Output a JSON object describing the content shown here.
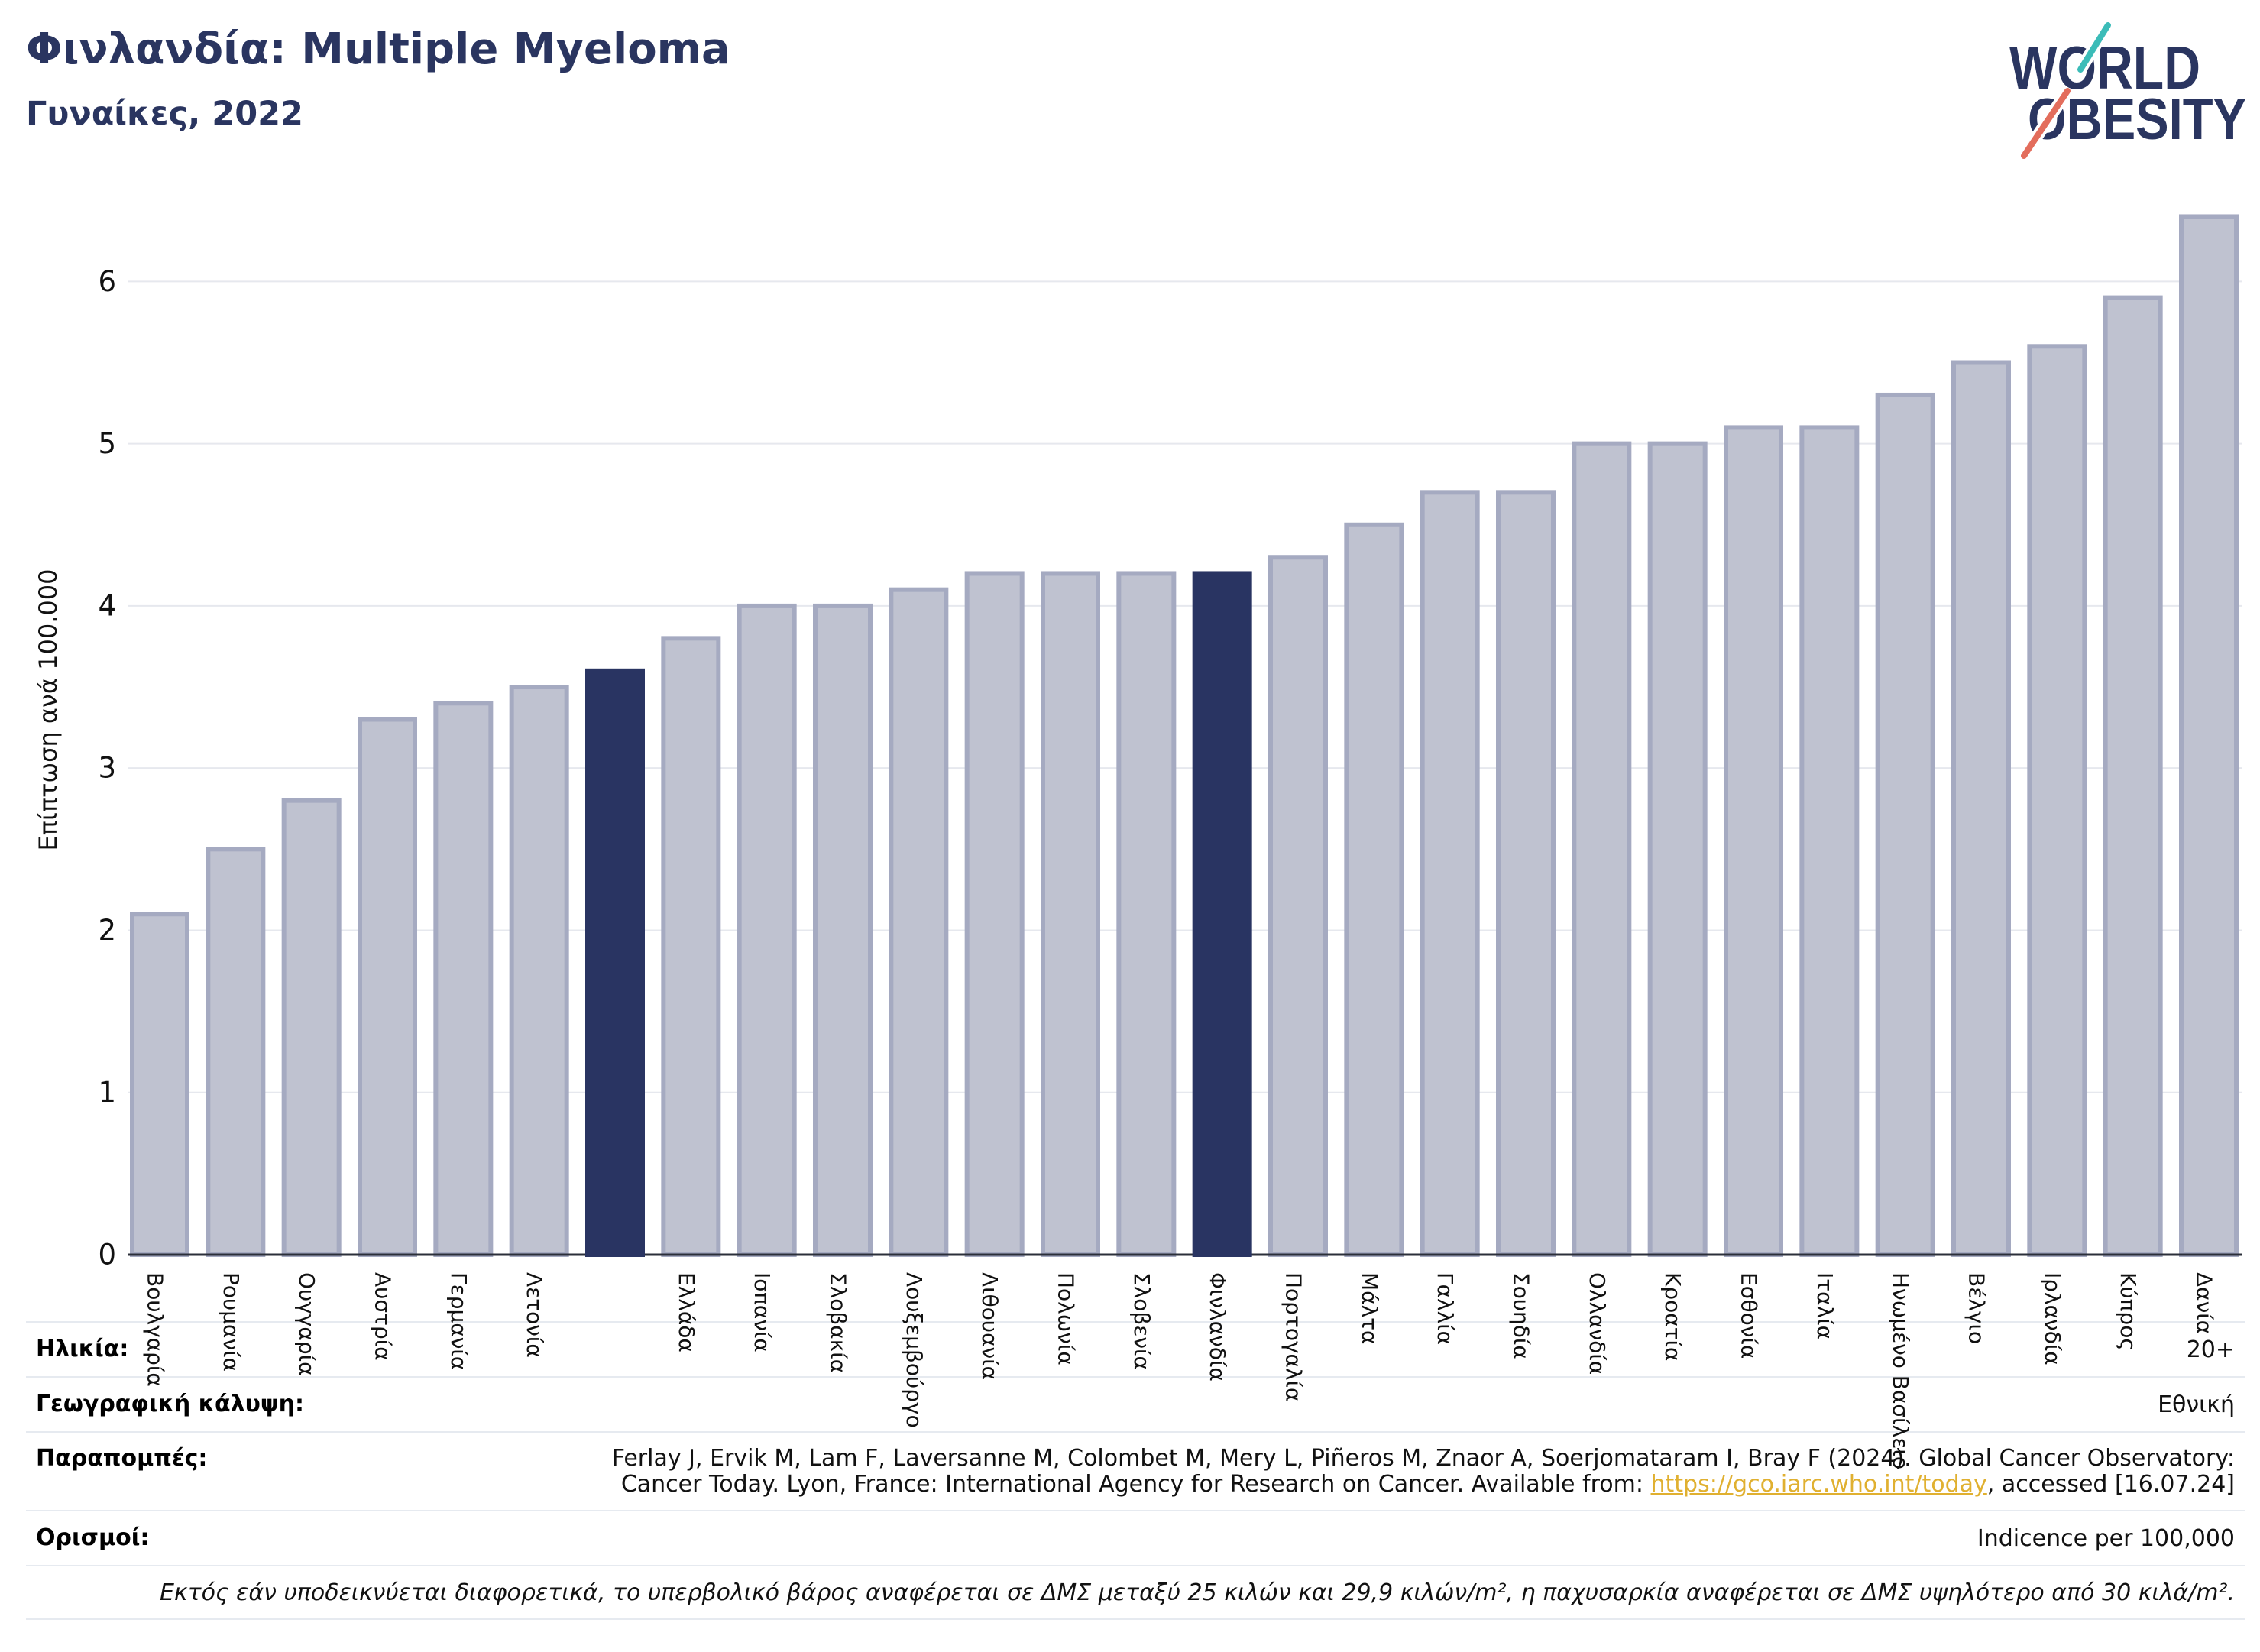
{
  "header": {
    "title": "Φινλανδία: Multiple Myeloma",
    "subtitle": "Γυναίκες, 2022"
  },
  "logo": {
    "line1": "WORLD",
    "line2": "OBESITY",
    "colors": {
      "text": "#2a3560",
      "slash_top": "#3bbcb8",
      "slash_bottom": "#e36d5c"
    }
  },
  "chart_data": {
    "type": "bar",
    "title": "Φινλανδία: Multiple Myeloma",
    "subtitle": "Γυναίκες, 2022",
    "xlabel": "",
    "ylabel": "Επίπτωση ανά 100.000",
    "categories": [
      "Βουλγαρία",
      "Ρουμανία",
      "Ουγγαρία",
      "Αυστρία",
      "Γερμανία",
      "Λετονία",
      "",
      "Ελλάδα",
      "Ισπανία",
      "Σλοβακία",
      "Λουξεμβούργο",
      "Λιθουανία",
      "Πολωνία",
      "Σλοβενία",
      "Φινλανδία",
      "Πορτογαλία",
      "Μάλτα",
      "Γαλλία",
      "Σουηδία",
      "Ολλανδία",
      "Κροατία",
      "Εσθονία",
      "Ιταλία",
      "Ηνωμένο Βασίλειο",
      "Βέλγιο",
      "Ιρλανδία",
      "Κύπρος",
      "Δανία"
    ],
    "values": [
      2.1,
      2.5,
      2.8,
      3.3,
      3.4,
      3.5,
      3.6,
      3.8,
      4.0,
      4.0,
      4.1,
      4.2,
      4.2,
      4.2,
      4.2,
      4.3,
      4.5,
      4.7,
      4.7,
      5.0,
      5.0,
      5.1,
      5.1,
      5.3,
      5.5,
      5.6,
      5.9,
      6.4
    ],
    "highlighted": [
      false,
      false,
      false,
      false,
      false,
      false,
      true,
      false,
      false,
      false,
      false,
      false,
      false,
      false,
      true,
      false,
      false,
      false,
      false,
      false,
      false,
      false,
      false,
      false,
      false,
      false,
      false,
      false
    ],
    "ylim": [
      0,
      6.6
    ],
    "yticks": [
      0,
      1,
      2,
      3,
      4,
      5,
      6
    ],
    "grid": "horizontal",
    "legend": "none",
    "colors": {
      "bar": "#bfc2d0",
      "bar_edge": "#a5aac1",
      "highlight": "#293462",
      "grid": "#e6e8ee",
      "axis": "#2b2f3a"
    }
  },
  "table": {
    "age": {
      "label": "Ηλικία:",
      "value": "20+"
    },
    "coverage": {
      "label": "Γεωγραφική κάλυψη:",
      "value": "Εθνική"
    },
    "references": {
      "label": "Παραπομπές:",
      "line1": "Ferlay J, Ervik M, Lam F, Laversanne M, Colombet M, Mery L, Piñeros M, Znaor A, Soerjomataram I, Bray F (2024). Global Cancer Observatory:",
      "line2_before_link": "Cancer Today. Lyon, France: International Agency for Research on Cancer. Available from: ",
      "link": "https://gco.iarc.who.int/today",
      "line2_after_link": ", accessed [16.07.24]",
      "link_color": "#e0b030"
    },
    "definitions": {
      "label": "Ορισμοί:",
      "value": "Indicence per 100,000"
    },
    "footnote": "Εκτός εάν υποδεικνύεται διαφορετικά, το υπερβολικό βάρος αναφέρεται σε ΔΜΣ μεταξύ 25 κιλών και 29,9 κιλών/m², η παχυσαρκία αναφέρεται σε ΔΜΣ υψηλότερο από 30 κιλά/m²."
  }
}
